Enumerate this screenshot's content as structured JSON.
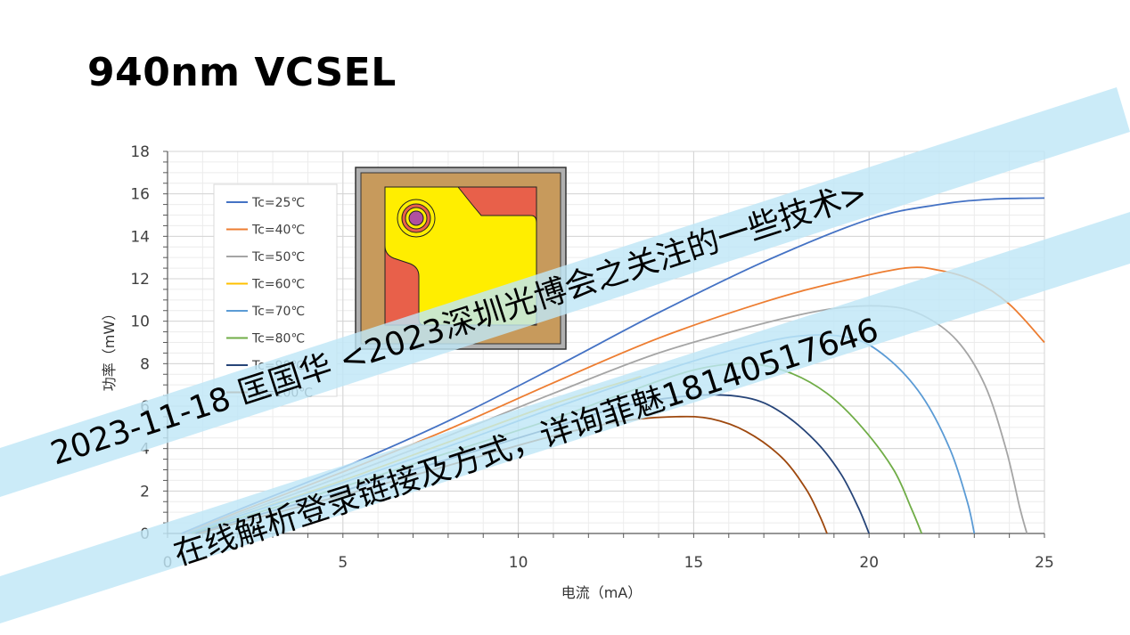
{
  "slide": {
    "title": "940nm VCSEL"
  },
  "chart_data": {
    "type": "line",
    "xlabel": "电流（mA）",
    "ylabel": "功率（mW）",
    "xlim": [
      0,
      25
    ],
    "ylim": [
      0,
      18
    ],
    "xticks": [
      0,
      5,
      10,
      15,
      20,
      25
    ],
    "yticks": [
      0,
      2,
      4,
      6,
      8,
      10,
      12,
      14,
      16,
      18
    ],
    "grid": true,
    "legend_position": "top-left",
    "series": [
      {
        "name": "Tc=25℃",
        "color": "#4472c4",
        "x": [
          0.4,
          2,
          5,
          8,
          11,
          14,
          17,
          20,
          22,
          23.5,
          25
        ],
        "y": [
          0,
          1.1,
          3.1,
          5.3,
          7.8,
          10.4,
          12.8,
          14.8,
          15.5,
          15.75,
          15.8
        ]
      },
      {
        "name": "Tc=40℃",
        "color": "#ed7d31",
        "x": [
          0.5,
          2,
          5,
          8,
          11,
          14,
          17,
          19,
          21,
          22,
          23,
          24,
          25
        ],
        "y": [
          0,
          1.0,
          2.9,
          4.9,
          7.1,
          9.2,
          10.9,
          11.8,
          12.5,
          12.4,
          11.9,
          10.8,
          9.0
        ]
      },
      {
        "name": "Tc=50℃",
        "color": "#a5a5a5",
        "x": [
          0.5,
          2,
          5,
          8,
          11,
          14,
          17,
          19,
          20.5,
          21.5,
          22.5,
          23.3,
          23.9,
          24.3,
          24.5
        ],
        "y": [
          0,
          0.9,
          2.7,
          4.6,
          6.6,
          8.5,
          9.9,
          10.6,
          10.7,
          10.3,
          9.1,
          7.0,
          4.0,
          1.2,
          0
        ]
      },
      {
        "name": "Tc=60℃",
        "color": "#ffc000",
        "x": [
          0.6,
          2,
          5,
          8,
          11,
          13.5
        ],
        "y": [
          0,
          0.8,
          2.5,
          4.3,
          6.1,
          7.4
        ]
      },
      {
        "name": "Tc=70℃",
        "color": "#5b9bd5",
        "x": [
          0.6,
          2,
          5,
          8,
          11,
          14,
          16,
          18,
          19.5,
          20.5,
          21.5,
          22.3,
          22.8,
          23.0
        ],
        "y": [
          0,
          0.8,
          2.4,
          4.1,
          5.9,
          7.6,
          8.6,
          9.3,
          9.2,
          8.3,
          6.5,
          4.0,
          1.5,
          0
        ]
      },
      {
        "name": "Tc=80℃",
        "color": "#70ad47",
        "x": [
          0.7,
          2,
          5,
          8,
          11,
          13,
          15,
          16.5,
          17.7,
          18.8,
          19.8,
          20.7,
          21.2,
          21.5
        ],
        "y": [
          0,
          0.7,
          2.2,
          3.8,
          5.4,
          6.6,
          7.7,
          8.0,
          7.6,
          6.6,
          5.0,
          3.0,
          1.2,
          0
        ]
      },
      {
        "name": "Tc=90℃",
        "color": "#264478",
        "x": [
          0.8,
          2,
          5,
          8,
          11,
          13,
          15,
          16.5,
          17.5,
          18.5,
          19.2,
          19.7,
          20.0
        ],
        "y": [
          0,
          0.6,
          2.0,
          3.5,
          5.0,
          6.0,
          6.5,
          6.4,
          5.7,
          4.3,
          2.8,
          1.2,
          0
        ]
      },
      {
        "name": "Tc=100℃",
        "color": "#9e480e",
        "x": [
          0.9,
          2,
          5,
          8,
          11,
          13,
          14.5,
          15.5,
          16.5,
          17.5,
          18.2,
          18.6,
          18.8
        ],
        "y": [
          0,
          0.5,
          1.8,
          3.2,
          4.6,
          5.3,
          5.5,
          5.4,
          4.8,
          3.6,
          2.1,
          0.8,
          0
        ]
      }
    ]
  },
  "device_image": {
    "description_colors": {
      "outer": "#b0b0b0",
      "frame": "#c79a5c",
      "pad_red": "#e8604a",
      "pad_yellow": "#ffee00",
      "aperture": "#b050a0"
    }
  },
  "watermark": {
    "line1": "2023-11-18 匡国华 <2023深圳光博会之关注的一些技术>",
    "line2": "在线解析登录链接及方式，详询菲魅18140517646"
  }
}
